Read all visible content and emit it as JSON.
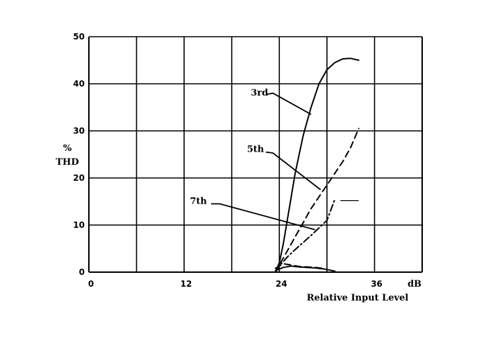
{
  "chart_data": {
    "type": "line",
    "xlabel": "Relative Input Level",
    "x_unit": "dB",
    "ylabel": "% THD",
    "ylabel_lines": [
      "%",
      "THD"
    ],
    "xlim": [
      0,
      42
    ],
    "ylim": [
      0,
      50
    ],
    "x_tick_labels": [
      "0",
      "12",
      "24",
      "36"
    ],
    "y_tick_labels": [
      "0",
      "10",
      "20",
      "30",
      "40",
      "50"
    ],
    "grid": true,
    "series": [
      {
        "name": "3rd",
        "style": "solid",
        "x": [
          23.5,
          24.0,
          24.5,
          25.0,
          26.0,
          27.0,
          28.0,
          29.0,
          30.0,
          31.0,
          32.0,
          33.0,
          34.0
        ],
        "y": [
          0,
          2,
          6,
          11,
          21,
          29,
          35,
          40,
          43,
          44.5,
          45.3,
          45.4,
          45.0
        ]
      },
      {
        "name": "5th",
        "style": "dashed",
        "x": [
          23.5,
          24.0,
          25.0,
          26.0,
          27.0,
          28.0,
          29.0,
          30.0,
          31.0,
          32.0,
          33.0,
          34.0
        ],
        "y": [
          0,
          1.5,
          4.5,
          7.5,
          10.5,
          13.5,
          16,
          18.5,
          21,
          23.5,
          26.5,
          30.5
        ]
      },
      {
        "name": "7th",
        "style": "dash-dot",
        "x": [
          23.5,
          24.0,
          25.0,
          26.0,
          27.0,
          28.0,
          29.0,
          30.0,
          31.0
        ],
        "y": [
          0,
          1.3,
          3.2,
          4.8,
          6.3,
          7.8,
          9.4,
          11.0,
          15.5
        ]
      },
      {
        "style": "solid",
        "x": [
          23.5,
          24.5,
          25.5,
          26.5,
          27.5,
          28.5,
          29.5,
          30.5,
          31.0
        ],
        "y": [
          0.3,
          1.0,
          1.3,
          1.1,
          1.0,
          0.9,
          0.7,
          0.4,
          0.2
        ]
      },
      {
        "style": "dashed",
        "x": [
          23.5,
          24.5,
          25.5,
          26.5,
          27.5,
          28.5,
          29.5,
          30.0
        ],
        "y": [
          0.8,
          1.8,
          1.5,
          1.2,
          1.1,
          1.0,
          0.8,
          0.5
        ]
      }
    ],
    "annotations": [
      {
        "text": "3rd",
        "label_at": [
          21.5,
          37.5
        ],
        "leader": [
          [
            22.5,
            37.8
          ],
          [
            23.2,
            38
          ],
          [
            28.0,
            33.5
          ]
        ]
      },
      {
        "text": "5th",
        "label_at": [
          21.0,
          25.5
        ],
        "leader": [
          [
            22.3,
            25.5
          ],
          [
            23.2,
            25.3
          ],
          [
            29.2,
            17.5
          ]
        ]
      },
      {
        "text": "7th",
        "label_at": [
          13.8,
          14.5
        ],
        "leader": [
          [
            15.4,
            14.5
          ],
          [
            16.5,
            14.5
          ],
          [
            28.5,
            9.0
          ]
        ]
      }
    ],
    "legend_sample": {
      "style": "solid",
      "x": [
        31.7,
        34.0
      ],
      "y": [
        15.2,
        15.2
      ]
    }
  }
}
